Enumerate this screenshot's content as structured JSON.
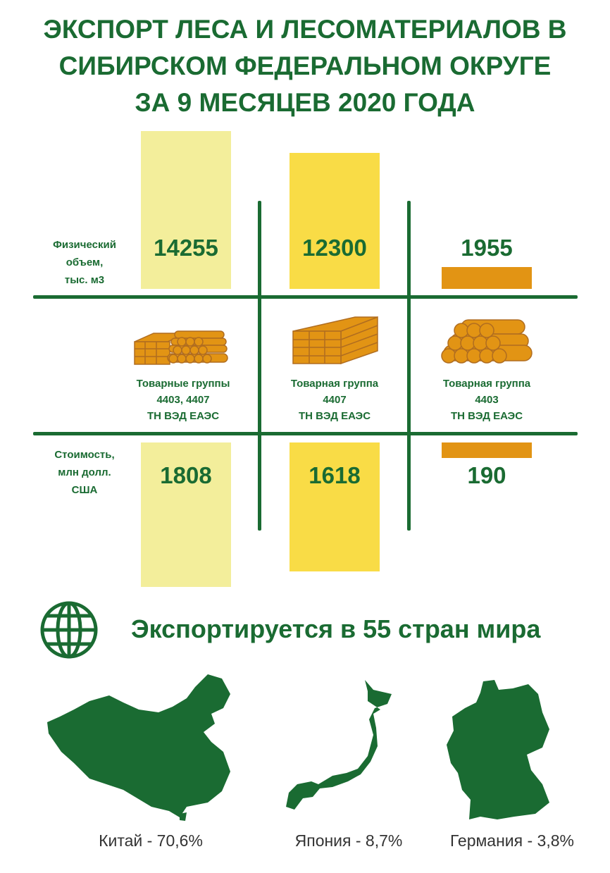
{
  "title": [
    "ЭКСПОРТ ЛЕСА И ЛЕСОМАТЕРИАЛОВ В",
    "СИБИРСКОМ ФЕДЕРАЛЬНОМ ОКРУГЕ",
    "ЗА 9 МЕСЯЦЕВ 2020 ГОДА"
  ],
  "colors": {
    "green": "#1a6b32",
    "light_yellow": "#f3ee9b",
    "yellow": "#f9dc46",
    "orange": "#e29414"
  },
  "rows": {
    "volume_label": [
      "Физический",
      "объем,",
      "тыс. м3"
    ],
    "value_label": [
      "Стоимость,",
      "млн долл.",
      "США"
    ]
  },
  "groups": [
    {
      "label": [
        "Товарные группы",
        "4403, 4407",
        "ТН ВЭД ЕАЭС"
      ],
      "icon": "lumber-and-logs-icon"
    },
    {
      "label": [
        "Товарная группа",
        "4407",
        "ТН ВЭД ЕАЭС"
      ],
      "icon": "lumber-stack-icon"
    },
    {
      "label": [
        "Товарная группа",
        "4403",
        "ТН ВЭД ЕАЭС"
      ],
      "icon": "logs-stack-icon"
    }
  ],
  "chart_data": {
    "type": "bar",
    "categories": [
      "4403, 4407",
      "4407",
      "4403"
    ],
    "series": [
      {
        "name": "Физический объем, тыс. м3",
        "values": [
          14255,
          12300,
          1955
        ]
      },
      {
        "name": "Стоимость, млн долл. США",
        "values": [
          1808,
          1618,
          190
        ]
      }
    ],
    "value_labels": {
      "volume": [
        "14255",
        "12300",
        "1955"
      ],
      "cost": [
        "1808",
        "1618",
        "190"
      ]
    }
  },
  "countries": {
    "icon": "globe-icon",
    "title": "Экспортируется в 55 стран мира",
    "items": [
      {
        "label": "Китай - 70,6%",
        "share": 70.6
      },
      {
        "label": "Япония - 8,7%",
        "share": 8.7
      },
      {
        "label": "Германия - 3,8%",
        "share": 3.8
      }
    ]
  }
}
